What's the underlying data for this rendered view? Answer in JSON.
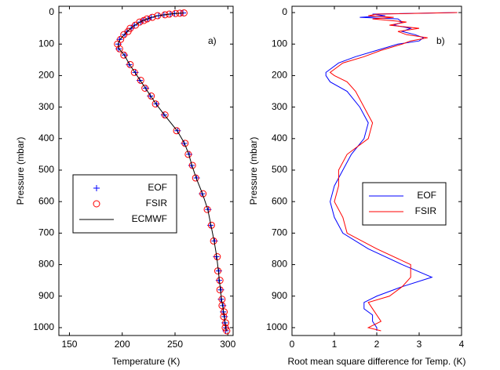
{
  "chart_data": [
    {
      "type": "line",
      "annotation": "a)",
      "xlabel": "Temperature (K)",
      "ylabel": "Pressure (mbar)",
      "xlim": [
        140,
        305
      ],
      "xticks": [
        150,
        200,
        250,
        300
      ],
      "ylim": [
        -20,
        1025
      ],
      "y_reversed": true,
      "yticks": [
        0,
        100,
        200,
        300,
        400,
        500,
        600,
        700,
        800,
        900,
        1000
      ],
      "legend": "center left",
      "levels": [
        1,
        2,
        3,
        5,
        7,
        10,
        15,
        20,
        25,
        30,
        40,
        50,
        60,
        70,
        85,
        100,
        115,
        135,
        165,
        190,
        215,
        240,
        265,
        290,
        325,
        375,
        415,
        450,
        485,
        525,
        575,
        625,
        675,
        725,
        775,
        820,
        850,
        880,
        910,
        930,
        950,
        965,
        985,
        1000,
        1010
      ],
      "series": [
        {
          "name": "EOF",
          "color": "#0000ff",
          "marker": "+",
          "line": false,
          "values": [
            257.5,
            255.5,
            249.5,
            245.5,
            239.5,
            234.5,
            227.5,
            224.5,
            219.5,
            217.5,
            211.5,
            208.5,
            204.5,
            202.5,
            197.5,
            196.5,
            196.5,
            202.5,
            206.5,
            212.5,
            216.5,
            222.5,
            226.5,
            232.5,
            239.5,
            252.5,
            258.5,
            263.5,
            265.5,
            270.5,
            275.5,
            281.5,
            283.5,
            287.5,
            289,
            291.5,
            291.5,
            293.5,
            293.5,
            295.5,
            295.5,
            297,
            297,
            298.5,
            298
          ]
        },
        {
          "name": "FSIR",
          "color": "#ff0000",
          "marker": "o",
          "line": false,
          "values": [
            258.5,
            254.5,
            250.5,
            244.5,
            240.5,
            233.5,
            228.5,
            223.5,
            220.5,
            216.5,
            212.5,
            207.5,
            205.5,
            201.5,
            198.5,
            195.5,
            197.5,
            201.5,
            207.5,
            211.5,
            217.5,
            221.5,
            227.5,
            231.5,
            240.5,
            251.5,
            259.5,
            262.5,
            266.5,
            269.5,
            276.5,
            280.5,
            284.5,
            286.5,
            290,
            290.5,
            292.5,
            292.5,
            294.5,
            294.5,
            296.5,
            296,
            298,
            297.5,
            299
          ]
        },
        {
          "name": "ECMWF",
          "color": "#000000",
          "marker": null,
          "line": true,
          "values": [
            258,
            255,
            250,
            245,
            240,
            234,
            228,
            224,
            220,
            217,
            212,
            208,
            205,
            202,
            198,
            196,
            197,
            202,
            207,
            212,
            217,
            222,
            227,
            232,
            240,
            252,
            259,
            263,
            266,
            270,
            276,
            281,
            284,
            287,
            289.5,
            291,
            292,
            293,
            294,
            295,
            296,
            296.5,
            297.5,
            298,
            298.5
          ]
        }
      ]
    },
    {
      "type": "line",
      "annotation": "b)",
      "xlabel": "Root mean square difference for Temp. (K)",
      "ylabel": "Pressure (mbar)",
      "xlim": [
        0,
        4
      ],
      "xticks": [
        0,
        1,
        2,
        3,
        4
      ],
      "ylim": [
        -20,
        1025
      ],
      "y_reversed": true,
      "yticks": [
        0,
        100,
        200,
        300,
        400,
        500,
        600,
        700,
        800,
        900,
        1000
      ],
      "legend": "center right",
      "levels": [
        0,
        5,
        10,
        15,
        20,
        30,
        40,
        50,
        60,
        70,
        80,
        90,
        100,
        120,
        140,
        160,
        180,
        190,
        200,
        220,
        250,
        300,
        350,
        400,
        450,
        500,
        550,
        600,
        650,
        700,
        750,
        800,
        840,
        870,
        900,
        920,
        940,
        960,
        980,
        1000,
        1010
      ],
      "series": [
        {
          "name": "EOF",
          "color": "#0000ff",
          "marker": null,
          "line": true,
          "values": [
            3.9,
            1.9,
            2.2,
            1.6,
            2.5,
            2.6,
            2.4,
            2.8,
            2.6,
            2.9,
            3.1,
            3.0,
            2.5,
            2.0,
            1.5,
            1.1,
            0.9,
            0.8,
            0.8,
            0.9,
            1.3,
            1.6,
            1.8,
            1.7,
            1.4,
            1.2,
            1.0,
            0.9,
            1.0,
            1.2,
            1.8,
            2.6,
            3.3,
            2.6,
            2.0,
            1.7,
            1.7,
            1.9,
            1.9,
            2.0,
            2.0
          ]
        },
        {
          "name": "FSIR",
          "color": "#ff0000",
          "marker": null,
          "line": true,
          "values": [
            3.9,
            2.0,
            1.8,
            2.4,
            1.9,
            2.7,
            2.3,
            3.0,
            2.5,
            2.7,
            3.2,
            2.8,
            2.6,
            2.1,
            1.7,
            1.2,
            1.0,
            0.9,
            1.0,
            1.3,
            1.5,
            1.7,
            1.9,
            1.8,
            1.3,
            1.1,
            1.1,
            1.0,
            1.2,
            1.3,
            2.0,
            2.8,
            2.8,
            2.6,
            2.3,
            1.8,
            1.9,
            2.0,
            2.1,
            1.8,
            2.1
          ]
        }
      ]
    }
  ]
}
